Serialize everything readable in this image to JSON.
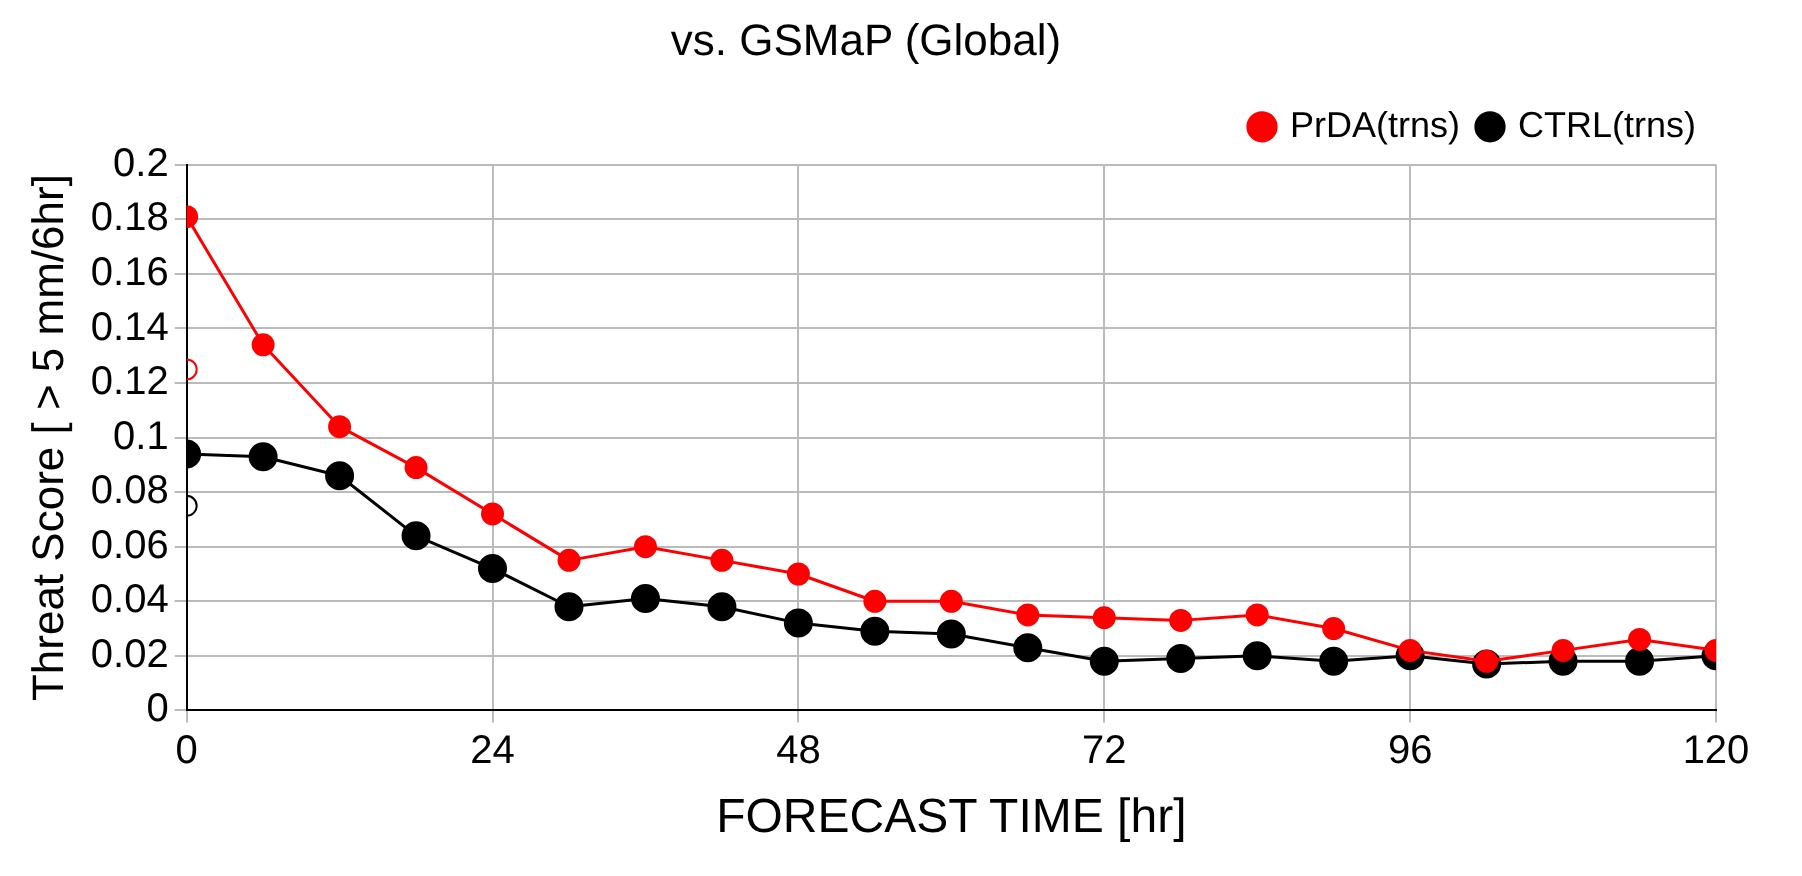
{
  "chart_data": {
    "type": "line",
    "title": "vs. GSMaP (Global)",
    "xlabel": "FORECAST TIME [hr]",
    "ylabel": "Threat Score [ > 5 mm/6hr]",
    "x": [
      0,
      6,
      12,
      18,
      24,
      30,
      36,
      42,
      48,
      54,
      60,
      66,
      72,
      78,
      84,
      90,
      96,
      102,
      108,
      114,
      120
    ],
    "xlim": [
      0,
      120
    ],
    "xticks": [
      0,
      24,
      48,
      72,
      96,
      120
    ],
    "ylim": [
      0,
      0.2
    ],
    "yticks": [
      0,
      0.02,
      0.04,
      0.06,
      0.08,
      0.1,
      0.12,
      0.14,
      0.16,
      0.18,
      0.2
    ],
    "grid": true,
    "legend": "top right",
    "marker": "circle",
    "line_style": "solid",
    "series": [
      {
        "name": "CTRL(trns)",
        "color": "#000000",
        "values": [
          0.094,
          0.093,
          0.086,
          0.064,
          0.052,
          0.038,
          0.041,
          0.038,
          0.032,
          0.029,
          0.028,
          0.023,
          0.018,
          0.019,
          0.02,
          0.018,
          0.02,
          0.017,
          0.018,
          0.018,
          0.02
        ]
      },
      {
        "name": "PrDA(trns)",
        "color": "#ff0000",
        "values": [
          0.181,
          0.134,
          0.104,
          0.089,
          0.072,
          0.055,
          0.06,
          0.055,
          0.05,
          0.04,
          0.04,
          0.035,
          0.034,
          0.033,
          0.035,
          0.03,
          0.022,
          0.018,
          0.022,
          0.026,
          0.022
        ]
      },
      {
        "type": "scatter",
        "color": "#ff0000",
        "x": [
          0
        ],
        "values": [
          0.125
        ]
      },
      {
        "type": "scatter",
        "color": "#000000",
        "x": [
          0
        ],
        "values": [
          0.075
        ]
      }
    ]
  }
}
